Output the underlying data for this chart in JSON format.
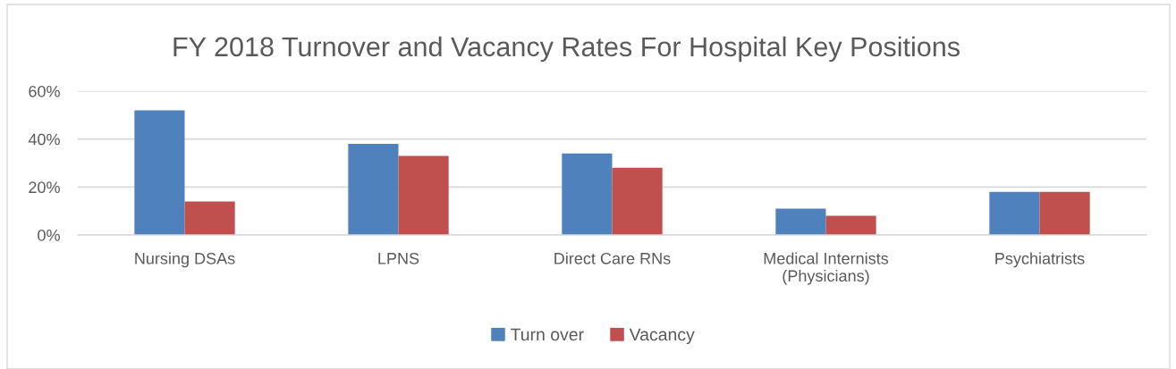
{
  "chart_data": {
    "type": "bar",
    "title": "FY 2018 Turnover and Vacancy Rates For Hospital Key Positions",
    "categories": [
      "Nursing DSAs",
      "LPNS",
      "Direct Care RNs",
      "Medical Internists\n(Physicians)",
      "Psychiatrists"
    ],
    "series": [
      {
        "name": "Turn over",
        "color": "#4f81bd",
        "values": [
          52,
          38,
          34,
          11,
          18
        ]
      },
      {
        "name": "Vacancy",
        "color": "#c0504d",
        "values": [
          14,
          33,
          28,
          8,
          18
        ]
      }
    ],
    "ylim": [
      0,
      60
    ],
    "yticks": [
      {
        "value": 0,
        "label": "0%"
      },
      {
        "value": 20,
        "label": "20%"
      },
      {
        "value": 40,
        "label": "40%"
      },
      {
        "value": 60,
        "label": "60%"
      }
    ],
    "grid": "y",
    "legend": "bottom"
  }
}
